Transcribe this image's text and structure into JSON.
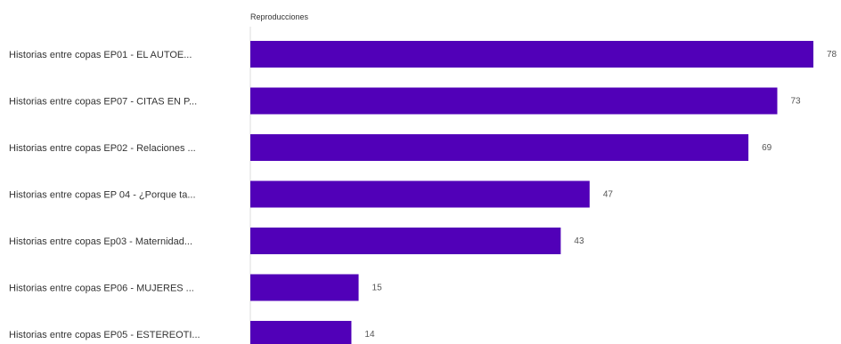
{
  "chart_data": {
    "type": "bar",
    "orientation": "horizontal",
    "axis_title": "Reproducciones",
    "categories": [
      "Historias entre copas EP01 - EL AUTOE...",
      "Historias entre copas EP07 - CITAS EN P...",
      "Historias entre copas EP02 - Relaciones ...",
      "Historias entre copas EP 04 - ¿Porque ta...",
      "Historias entre copas Ep03 - Maternidad...",
      "Historias entre copas EP06 - MUJERES ...",
      "Historias entre copas EP05 - ESTEREOTI..."
    ],
    "values": [
      78,
      73,
      69,
      47,
      43,
      15,
      14
    ],
    "xlim": [
      0,
      78
    ],
    "bar_color": "#5100b8",
    "grid": false
  }
}
